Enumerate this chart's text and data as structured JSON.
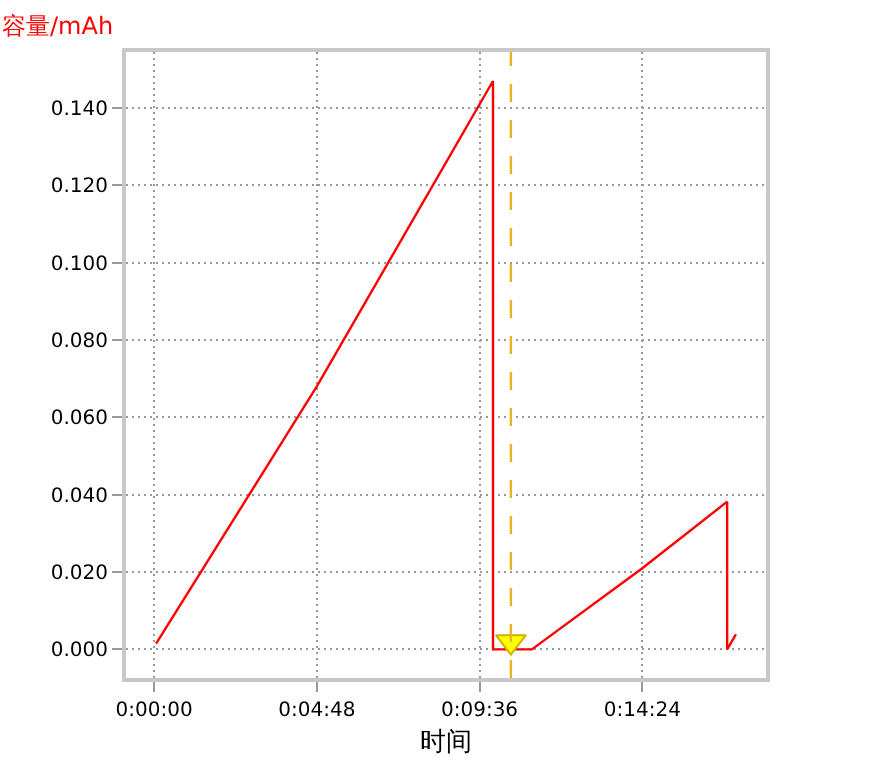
{
  "chart_data": {
    "type": "line",
    "xlabel": "时间",
    "ylabel": "容量/mAh",
    "series": [
      {
        "color": "#ff0000",
        "x": [
          0.001,
          0.08,
          0.1666,
          0.1666,
          0.1857,
          0.24,
          0.2817,
          0.2817,
          0.286
        ],
        "values": [
          0.0015,
          0.068,
          0.147,
          0.0,
          0.0,
          0.021,
          0.0382,
          0.0,
          0.0039
        ]
      },
      {
        "type": "scatter",
        "marker": "triangle",
        "color": "#ffff00",
        "x": [
          0.1754
        ],
        "values": [
          0.002
        ]
      }
    ],
    "ref_lines": [
      {
        "axis": "x",
        "value": 0.1754,
        "color": "#e6b422",
        "line_style": "dashed"
      }
    ],
    "xlim": [
      -0.0138,
      0.3008
    ],
    "xticks": [
      {
        "value": 0,
        "label": "0:00:00"
      },
      {
        "value": 0.08,
        "label": "0:04:48"
      },
      {
        "value": 0.16,
        "label": "0:09:36"
      },
      {
        "value": 0.24,
        "label": "0:14:24"
      }
    ],
    "ylim": [
      -0.0074,
      0.1545
    ],
    "yticks": [
      {
        "value": 0,
        "label": "0.000"
      },
      {
        "value": 0.02,
        "label": "0.020"
      },
      {
        "value": 0.04,
        "label": "0.040"
      },
      {
        "value": 0.06,
        "label": "0.060"
      },
      {
        "value": 0.08,
        "label": "0.080"
      },
      {
        "value": 0.1,
        "label": "0.100"
      },
      {
        "value": 0.12,
        "label": "0.120"
      },
      {
        "value": 0.14,
        "label": "0.140"
      }
    ],
    "grid": true
  }
}
